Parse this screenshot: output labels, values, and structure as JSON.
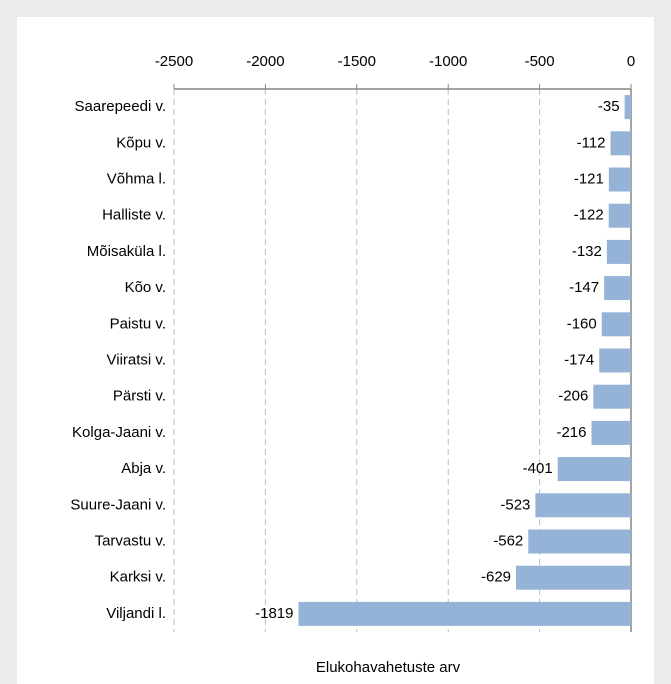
{
  "chart_data": {
    "type": "bar",
    "orientation": "horizontal",
    "categories": [
      "Saarepeedi v.",
      "Kõpu v.",
      "Võhma l.",
      "Halliste v.",
      "Mõisaküla l.",
      "Kõo v.",
      "Paistu v.",
      "Viiratsi v.",
      "Pärsti v.",
      "Kolga-Jaani v.",
      "Abja v.",
      "Suure-Jaani v.",
      "Tarvastu v.",
      "Karksi v.",
      "Viljandi l."
    ],
    "values": [
      -35,
      -112,
      -121,
      -122,
      -132,
      -147,
      -160,
      -174,
      -206,
      -216,
      -401,
      -523,
      -562,
      -629,
      -1819
    ],
    "color": "#95b3d7",
    "xlim": [
      -2500,
      0
    ],
    "xticks": [
      -2500,
      -2000,
      -1500,
      -1000,
      -500,
      0
    ],
    "x_label": "Elukohavahetuste arv",
    "grid": true,
    "data_labels": true
  }
}
